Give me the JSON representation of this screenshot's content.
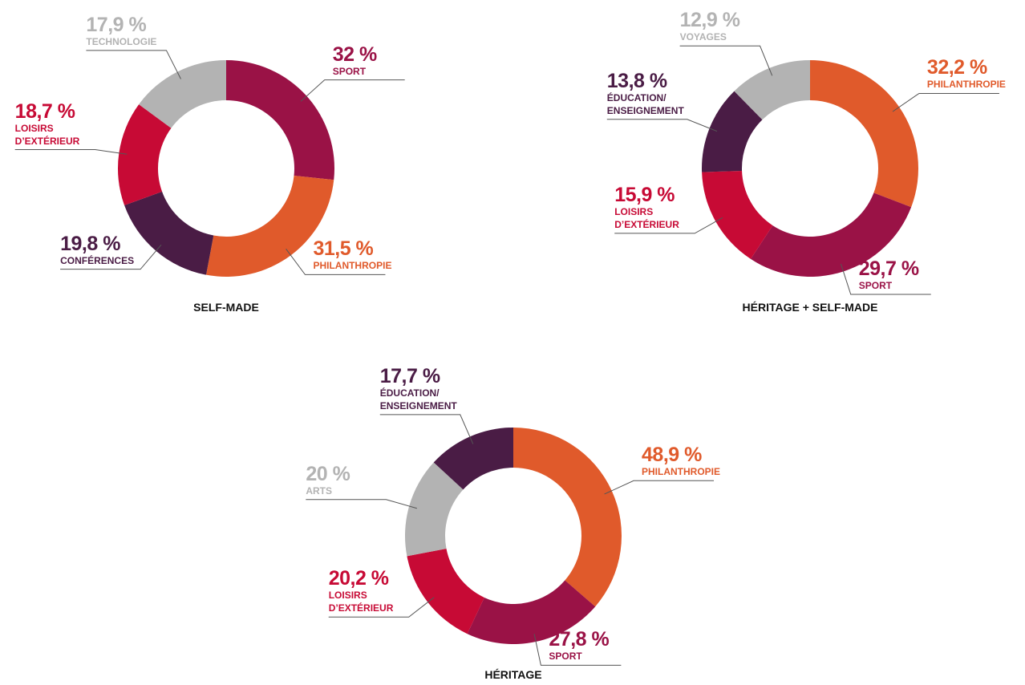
{
  "chart_data": [
    {
      "type": "donut",
      "title": "SELF-MADE",
      "categories": [
        "SPORT",
        "PHILANTHROPIE",
        "CONFÉRENCES",
        "LOISIRS\nD’EXTÉRIEUR",
        "TECHNOLOGIE"
      ],
      "values": [
        32,
        31.5,
        19.8,
        18.7,
        17.9
      ],
      "value_labels": [
        "32 %",
        "31,5 %",
        "19,8 %",
        "18,7 %",
        "17,9 %"
      ],
      "colors": [
        "#9a1246",
        "#e05a2b",
        "#4a1c45",
        "#c70a35",
        "#b3b3b3"
      ]
    },
    {
      "type": "donut",
      "title": "HÉRITAGE + SELF-MADE",
      "categories": [
        "PHILANTHROPIE",
        "SPORT",
        "LOISIRS\nD’EXTÉRIEUR",
        "ÉDUCATION/\nENSEIGNEMENT",
        "VOYAGES"
      ],
      "values": [
        32.2,
        29.7,
        15.9,
        13.8,
        12.9
      ],
      "value_labels": [
        "32,2 %",
        "29,7 %",
        "15,9 %",
        "13,8 %",
        "12,9 %"
      ],
      "colors": [
        "#e05a2b",
        "#9a1246",
        "#c70a35",
        "#4a1c45",
        "#b3b3b3"
      ]
    },
    {
      "type": "donut",
      "title": "HÉRITAGE",
      "categories": [
        "PHILANTHROPIE",
        "SPORT",
        "LOISIRS\nD’EXTÉRIEUR",
        "ARTS",
        "ÉDUCATION/\nENSEIGNEMENT"
      ],
      "values": [
        48.9,
        27.8,
        20.2,
        20,
        17.7
      ],
      "value_labels": [
        "48,9 %",
        "27,8 %",
        "20,2 %",
        "20 %",
        "17,7 %"
      ],
      "colors": [
        "#e05a2b",
        "#9a1246",
        "#c70a35",
        "#b3b3b3",
        "#4a1c45"
      ]
    }
  ]
}
